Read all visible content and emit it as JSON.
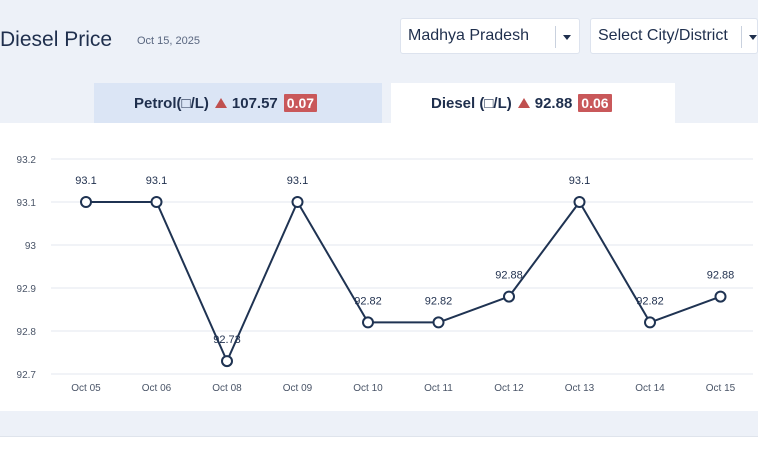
{
  "header": {
    "title": "Diesel Price",
    "date": "Oct 15, 2025"
  },
  "filters": {
    "state": "Madhya Pradesh",
    "city": "Select City/District"
  },
  "tabs": [
    {
      "label": "Petrol(□/L)",
      "price": "107.57",
      "change": "0.07",
      "trend": "up",
      "active": false
    },
    {
      "label": "Diesel (□/L)",
      "price": "92.88",
      "change": "0.06",
      "trend": "up",
      "active": true
    }
  ],
  "colors": {
    "line": "#1f3352",
    "up_arrow": "#c0504f",
    "badge": "#c9585a",
    "active_tab": "#ffffff",
    "inactive_tab": "#dbe5f5",
    "background": "#edf1f8"
  },
  "chart_data": {
    "type": "line",
    "categories": [
      "Oct 05",
      "Oct 06",
      "Oct 08",
      "Oct 09",
      "Oct 10",
      "Oct 11",
      "Oct 12",
      "Oct 13",
      "Oct 14",
      "Oct 15"
    ],
    "values": [
      93.1,
      93.1,
      92.73,
      93.1,
      92.82,
      92.82,
      92.88,
      93.1,
      92.82,
      92.88
    ],
    "data_labels": [
      "93.1",
      "93.1",
      "92.73",
      "93.1",
      "92.82",
      "92.82",
      "92.88",
      "93.1",
      "92.82",
      "92.88"
    ],
    "y_ticks": [
      "92.7",
      "92.8",
      "92.9",
      "93",
      "93.1",
      "93.2"
    ],
    "ylim": [
      92.7,
      93.2
    ],
    "grid": true,
    "markers": "hollow-circle",
    "title": "",
    "xlabel": "",
    "ylabel": ""
  }
}
